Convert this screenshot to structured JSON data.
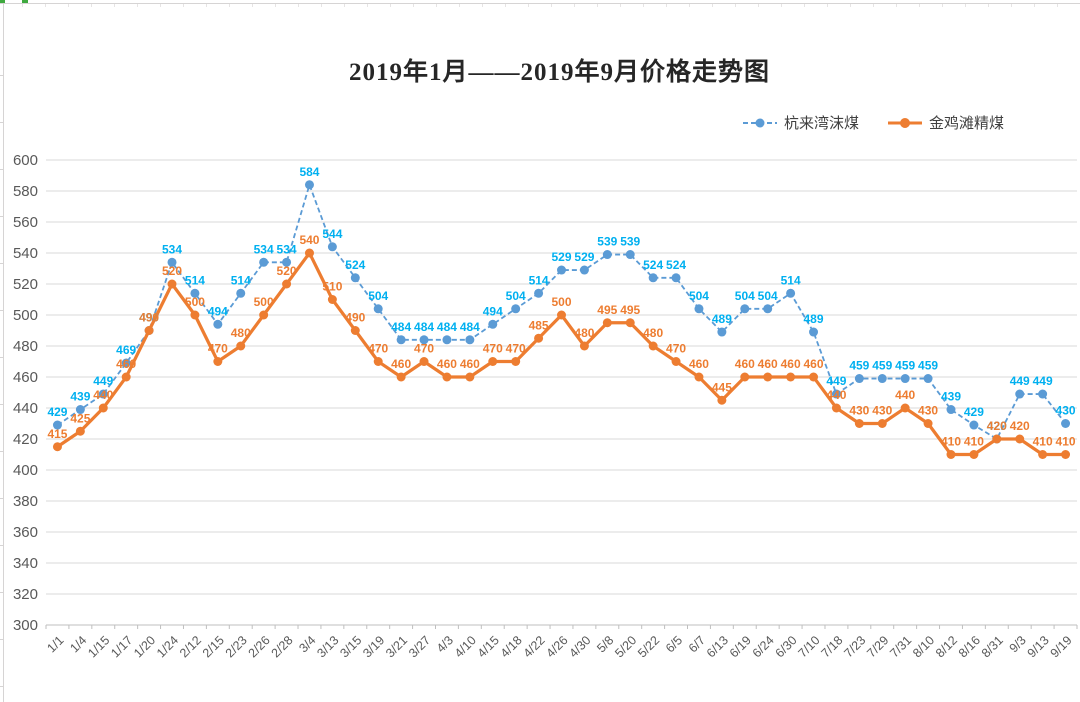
{
  "chart_data": {
    "type": "line",
    "title": "2019年1月——2019年9月价格走势图",
    "legend_position": "top-right",
    "grid": true,
    "ylim": [
      300,
      600
    ],
    "yticks": [
      300,
      320,
      340,
      360,
      380,
      400,
      420,
      440,
      460,
      480,
      500,
      520,
      540,
      560,
      580,
      600
    ],
    "axis_text_color": "#595959",
    "gridline_color": "#D9D9D9",
    "categories": [
      "1/1",
      "1/4",
      "1/15",
      "1/17",
      "1/20",
      "1/24",
      "2/12",
      "2/15",
      "2/23",
      "2/26",
      "2/28",
      "3/4",
      "3/13",
      "3/15",
      "3/19",
      "3/21",
      "3/27",
      "4/3",
      "4/10",
      "4/15",
      "4/18",
      "4/22",
      "4/26",
      "4/30",
      "5/8",
      "5/20",
      "5/22",
      "6/5",
      "6/7",
      "6/13",
      "6/19",
      "6/24",
      "6/30",
      "7/10",
      "7/18",
      "7/23",
      "7/29",
      "7/31",
      "8/10",
      "8/12",
      "8/16",
      "8/31",
      "9/3",
      "9/13",
      "9/19"
    ],
    "series": [
      {
        "name": "杭来湾沫煤",
        "line_style": "dashed",
        "color": "#5B9BD5",
        "label_color": "#00B0F0",
        "values": [
          429,
          439,
          449,
          469,
          490,
          534,
          514,
          494,
          514,
          534,
          534,
          584,
          544,
          524,
          504,
          484,
          484,
          484,
          484,
          494,
          504,
          514,
          529,
          529,
          539,
          539,
          524,
          524,
          504,
          489,
          504,
          504,
          514,
          489,
          449,
          459,
          459,
          459,
          459,
          439,
          429,
          420,
          449,
          449,
          430
        ]
      },
      {
        "name": "金鸡滩精煤",
        "line_style": "solid",
        "color": "#ED7D31",
        "label_color": "#ED7D31",
        "values": [
          415,
          425,
          440,
          460,
          490,
          520,
          500,
          470,
          480,
          500,
          520,
          540,
          510,
          490,
          470,
          460,
          470,
          460,
          460,
          470,
          470,
          485,
          500,
          480,
          495,
          495,
          480,
          470,
          460,
          445,
          460,
          460,
          460,
          460,
          440,
          430,
          430,
          440,
          430,
          410,
          410,
          420,
          420,
          410,
          410
        ]
      }
    ]
  }
}
